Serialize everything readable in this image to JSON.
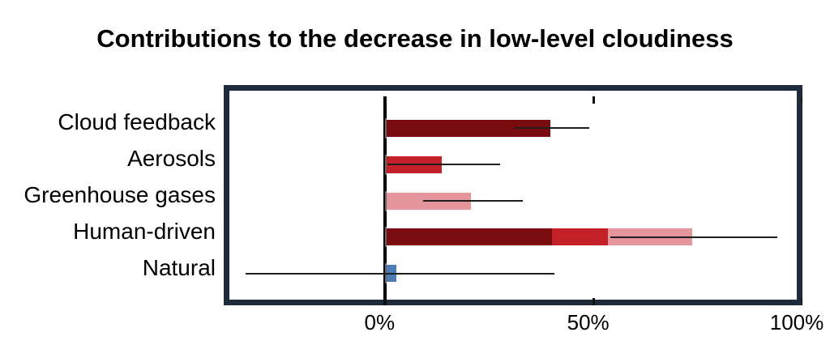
{
  "colors": {
    "frame": "#1d2b3a",
    "dark_red": "#7a0c10",
    "red": "#c32127",
    "pink": "#e5969c",
    "blue": "#4d7bb5",
    "zero_line": "#000000",
    "error_line": "#1e1e1e",
    "background": "#ffffff"
  },
  "chart_data": {
    "type": "bar",
    "orientation": "horizontal",
    "title": "Contributions to the decrease in low-level cloudiness",
    "xlabel": "",
    "ylabel": "",
    "xlim": [
      -36,
      100
    ],
    "grid": false,
    "legend": "none",
    "x_ticks": [
      {
        "value": 0,
        "label": "0%"
      },
      {
        "value": 50,
        "label": "50%"
      },
      {
        "value": 100,
        "label": "100%"
      }
    ],
    "categories": [
      "Cloud feedback",
      "Aerosols",
      "Greenhouse gases",
      "Human-driven",
      "Natural"
    ],
    "rows": [
      {
        "label": "Cloud feedback",
        "segments": [
          {
            "value": 40,
            "color": "dark_red"
          }
        ],
        "total": 40,
        "error_range": [
          31,
          49
        ]
      },
      {
        "label": "Aerosols",
        "segments": [
          {
            "value": 14,
            "color": "red"
          }
        ],
        "total": 14,
        "error_range": [
          0.5,
          27.5
        ]
      },
      {
        "label": "Greenhouse gases",
        "segments": [
          {
            "value": 21,
            "color": "pink"
          }
        ],
        "total": 21,
        "error_range": [
          9,
          33
        ]
      },
      {
        "label": "Human-driven",
        "segments": [
          {
            "value": 40,
            "color": "dark_red"
          },
          {
            "value": 13.5,
            "color": "red"
          },
          {
            "value": 20.5,
            "color": "pink"
          }
        ],
        "total": 74,
        "error_range": [
          54,
          94
        ]
      },
      {
        "label": "Natural",
        "segments": [
          {
            "value": 3,
            "color": "blue"
          }
        ],
        "total": 3,
        "error_range": [
          -33.5,
          40.5
        ]
      }
    ]
  }
}
